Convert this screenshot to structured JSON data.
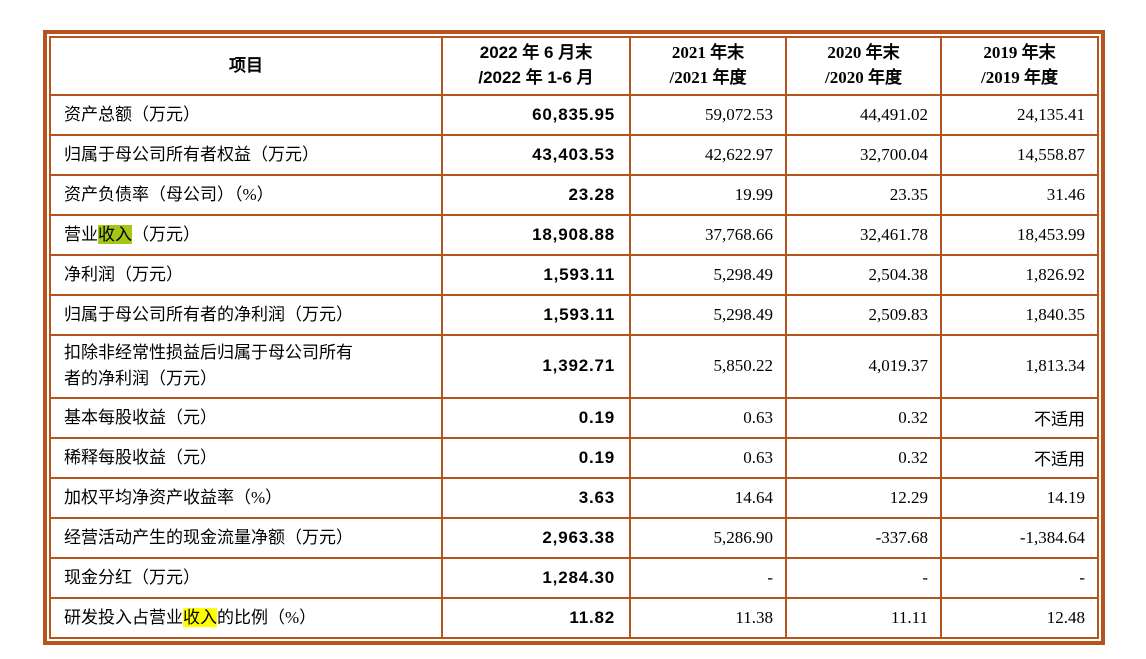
{
  "table": {
    "colors": {
      "border": "#b5541c",
      "text": "#000000",
      "highlight_green": "#a4c619",
      "highlight_yellow": "#ffff00"
    },
    "header": {
      "item": "项目",
      "periods": [
        {
          "line1": "2022 年 6 月末",
          "line2": "/2022 年 1-6 月"
        },
        {
          "line1": "2021 年末",
          "line2": "/2021 年度"
        },
        {
          "line1": "2020 年末",
          "line2": "/2020 年度"
        },
        {
          "line1": "2019 年末",
          "line2": "/2019 年度"
        }
      ]
    },
    "rows": [
      {
        "label": [
          {
            "text": "资产总额（万元）"
          }
        ],
        "values": [
          "60,835.95",
          "59,072.53",
          "44,491.02",
          "24,135.41"
        ]
      },
      {
        "label": [
          {
            "text": "归属于母公司所有者权益（万元）"
          }
        ],
        "values": [
          "43,403.53",
          "42,622.97",
          "32,700.04",
          "14,558.87"
        ]
      },
      {
        "label": [
          {
            "text": "资产负债率（母公司）（%）"
          }
        ],
        "values": [
          "23.28",
          "19.99",
          "23.35",
          "31.46"
        ]
      },
      {
        "label": [
          {
            "text": "营业"
          },
          {
            "text": "收入",
            "highlight": "green"
          },
          {
            "text": "（万元）"
          }
        ],
        "values": [
          "18,908.88",
          "37,768.66",
          "32,461.78",
          "18,453.99"
        ]
      },
      {
        "label": [
          {
            "text": "净利润（万元）"
          }
        ],
        "values": [
          "1,593.11",
          "5,298.49",
          "2,504.38",
          "1,826.92"
        ]
      },
      {
        "label": [
          {
            "text": "归属于母公司所有者的净利润（万元）"
          }
        ],
        "values": [
          "1,593.11",
          "5,298.49",
          "2,509.83",
          "1,840.35"
        ]
      },
      {
        "label": [
          {
            "text": "扣除非经常性损益后归属于母公司所有"
          },
          {
            "break": true
          },
          {
            "text": "者的净利润（万元）"
          }
        ],
        "tall": true,
        "values": [
          "1,392.71",
          "5,850.22",
          "4,019.37",
          "1,813.34"
        ]
      },
      {
        "label": [
          {
            "text": "基本每股收益（元）"
          }
        ],
        "values": [
          "0.19",
          "0.63",
          "0.32",
          "不适用"
        ]
      },
      {
        "label": [
          {
            "text": "稀释每股收益（元）"
          }
        ],
        "values": [
          "0.19",
          "0.63",
          "0.32",
          "不适用"
        ]
      },
      {
        "label": [
          {
            "text": "加权平均净资产收益率（%）"
          }
        ],
        "values": [
          "3.63",
          "14.64",
          "12.29",
          "14.19"
        ]
      },
      {
        "label": [
          {
            "text": "经营活动产生的现金流量净额（万元）"
          }
        ],
        "values": [
          "2,963.38",
          "5,286.90",
          "-337.68",
          "-1,384.64"
        ]
      },
      {
        "label": [
          {
            "text": "现金分红（万元）"
          }
        ],
        "values": [
          "1,284.30",
          "-",
          "-",
          "-"
        ]
      },
      {
        "label": [
          {
            "text": "研发投入占营业"
          },
          {
            "text": "收入",
            "highlight": "yellow"
          },
          {
            "text": "的比例（%）"
          }
        ],
        "values": [
          "11.82",
          "11.38",
          "11.11",
          "12.48"
        ]
      }
    ]
  }
}
